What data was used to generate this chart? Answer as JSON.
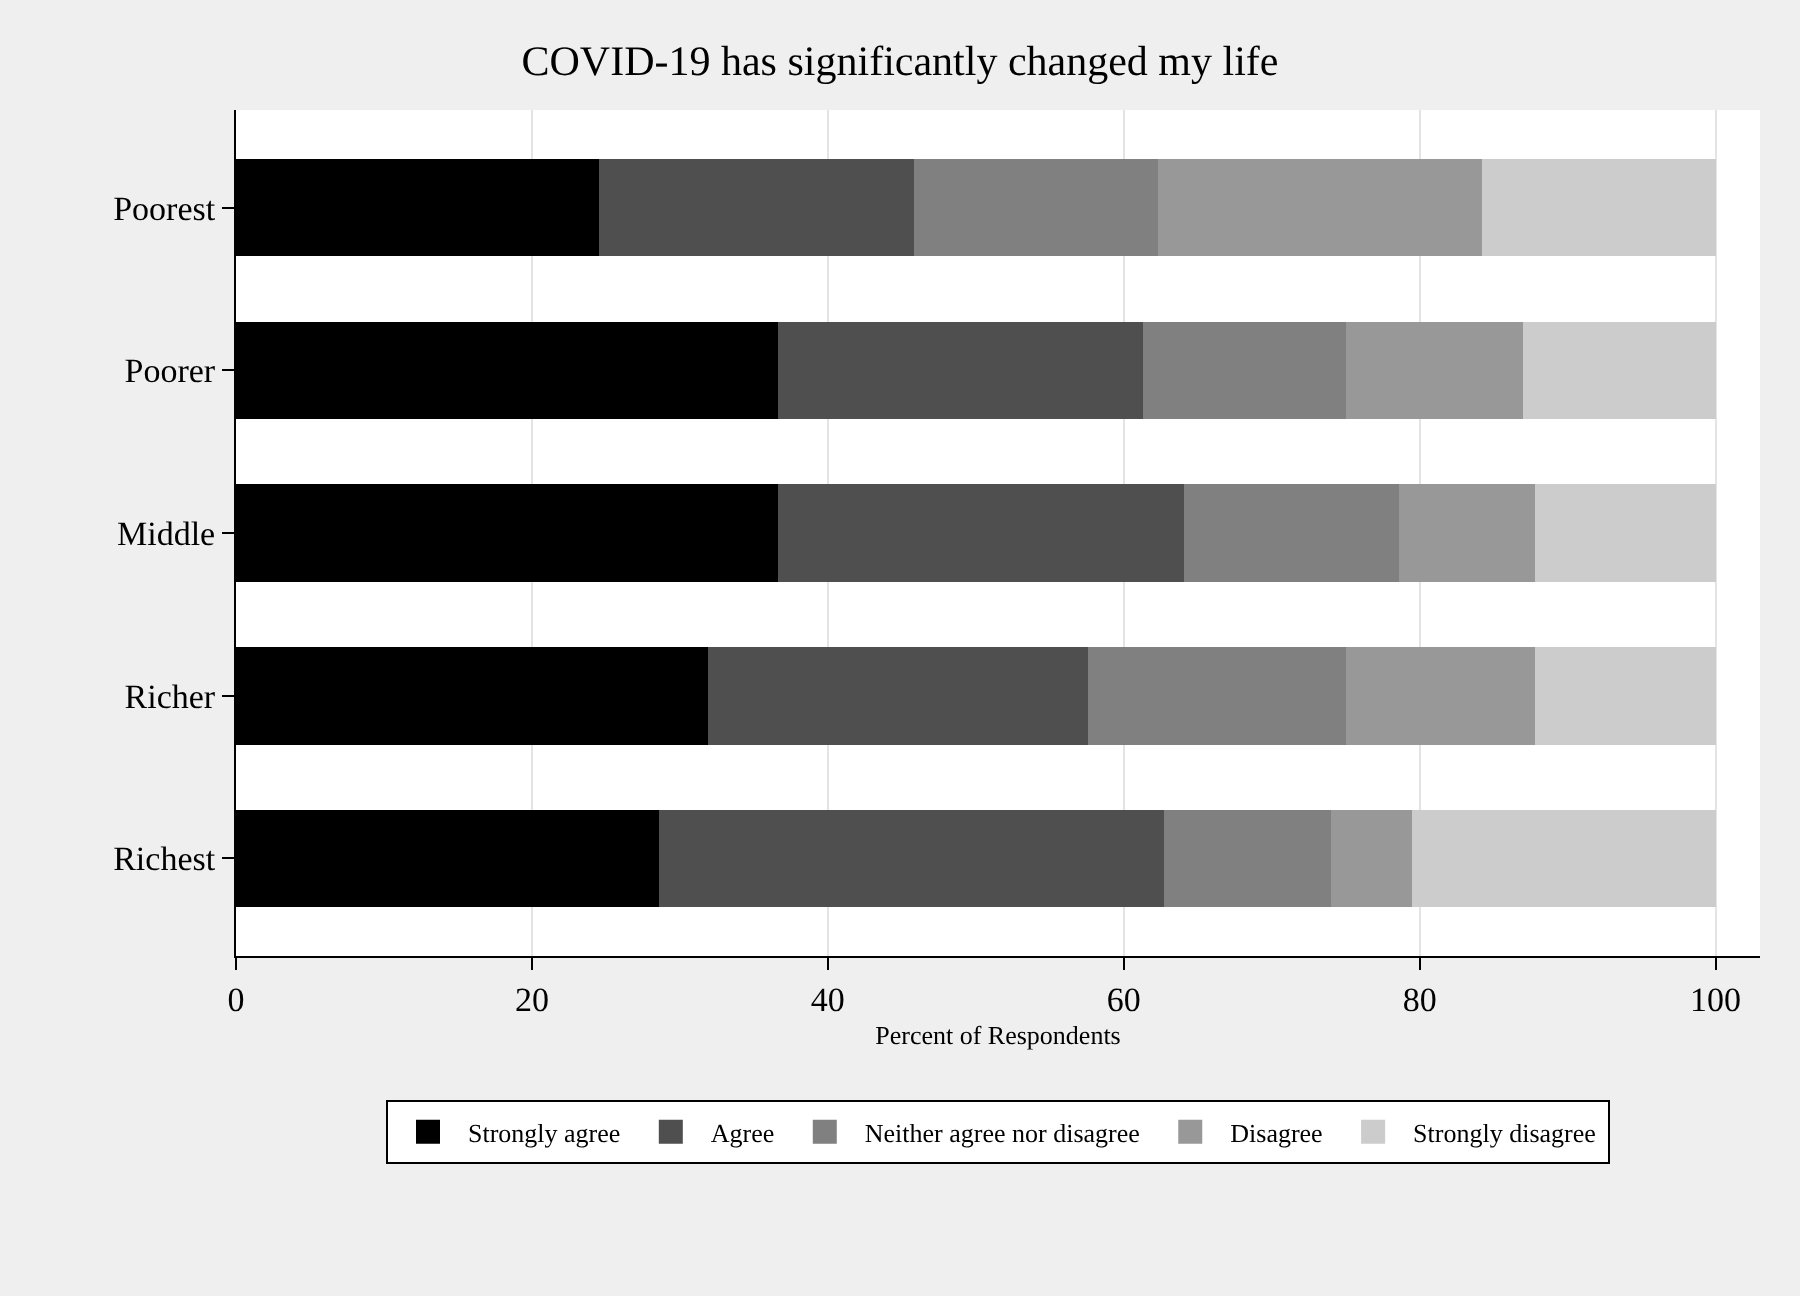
{
  "chart_data": {
    "type": "bar",
    "orientation": "horizontal",
    "stacked": true,
    "title": "COVID-19 has significantly changed my life",
    "xlabel": "Percent of Respondents",
    "categories": [
      "Poorest",
      "Poorer",
      "Middle",
      "Richer",
      "Richest"
    ],
    "series": [
      {
        "name": "Strongly agree",
        "color": "#000000",
        "values": [
          24.5,
          36.6,
          36.6,
          31.9,
          28.6
        ]
      },
      {
        "name": "Agree",
        "color": "#4f4f4f",
        "values": [
          21.3,
          24.7,
          27.5,
          25.7,
          34.1
        ]
      },
      {
        "name": "Neither agree nor disagree",
        "color": "#808080",
        "values": [
          16.5,
          13.7,
          14.5,
          17.4,
          11.3
        ]
      },
      {
        "name": "Disagree",
        "color": "#989898",
        "values": [
          21.9,
          12.0,
          9.2,
          12.8,
          5.5
        ]
      },
      {
        "name": "Strongly disagree",
        "color": "#cccccc",
        "values": [
          15.8,
          13.0,
          12.2,
          12.2,
          20.5
        ]
      }
    ],
    "xlim": [
      0,
      103
    ],
    "xticks": [
      0,
      20,
      40,
      60,
      80,
      100
    ],
    "grid": "x",
    "legend": "bottom"
  }
}
